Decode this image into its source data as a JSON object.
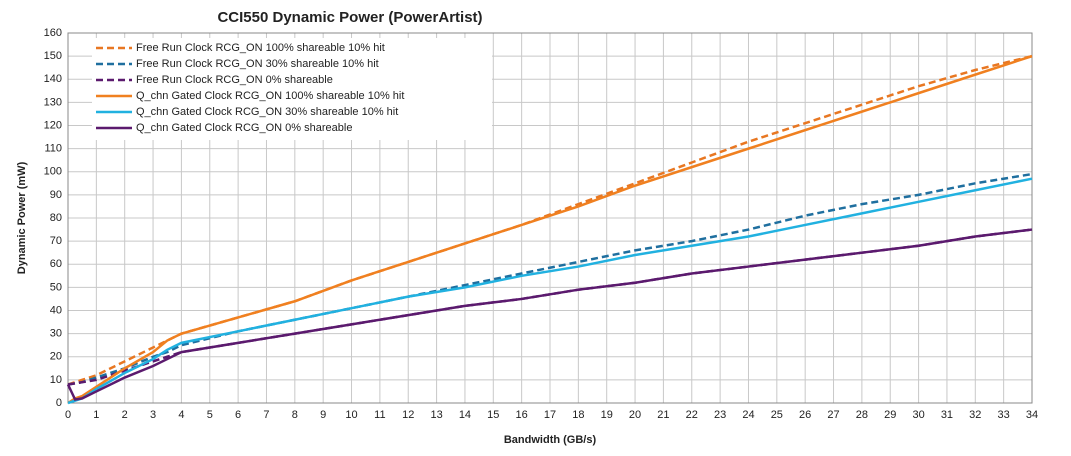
{
  "chart_data": {
    "type": "line",
    "title": "CCI550 Dynamic Power (PowerArtist)",
    "x_label": "Bandwidth (GB/s)",
    "y_label": "Dynamic Power (mW)",
    "x": [
      0,
      0.25,
      0.5,
      1,
      2,
      3,
      3.5,
      4,
      6,
      8,
      10,
      12,
      14,
      16,
      18,
      20,
      22,
      24,
      26,
      28,
      30,
      32,
      34
    ],
    "series": [
      {
        "name": "Free Run Clock RCG_ON 100% shareable 10% hit",
        "color": "#e87722",
        "dash": true,
        "values": [
          8,
          9,
          10,
          12,
          18,
          24,
          27,
          30,
          37,
          44,
          53,
          61,
          69,
          77,
          86,
          95,
          104,
          113,
          121,
          129,
          137,
          144,
          150
        ]
      },
      {
        "name": "Free Run Clock RCG_ON 30% shareable 10% hit",
        "color": "#1f6f9f",
        "dash": true,
        "values": [
          8,
          8.5,
          9,
          11,
          15,
          20,
          22,
          25,
          31,
          36,
          41,
          46,
          51,
          56,
          61,
          66,
          70,
          75,
          81,
          86,
          90,
          95,
          99
        ]
      },
      {
        "name": "Free Run Clock RCG_ON 0% shareable",
        "color": "#5b1a6e",
        "dash": true,
        "values": [
          8,
          8.5,
          9,
          10,
          14,
          18,
          20,
          22,
          26,
          30,
          34,
          38,
          42,
          45,
          49,
          52,
          56,
          59,
          62,
          65,
          68,
          72,
          75
        ]
      },
      {
        "name": "Q_chn Gated Clock RCG_ON 100% shareable 10% hit",
        "color": "#f08020",
        "dash": false,
        "values": [
          0,
          2,
          3,
          7,
          15,
          22,
          27,
          30,
          37,
          44,
          53,
          61,
          69,
          77,
          85,
          94,
          102,
          110,
          118,
          126,
          134,
          142,
          150
        ]
      },
      {
        "name": "Q_chn Gated Clock RCG_ON 30% shareable 10% hit",
        "color": "#21b1e0",
        "dash": false,
        "values": [
          0,
          1,
          2,
          6,
          13,
          19,
          23,
          26,
          31,
          36,
          41,
          46,
          50,
          55,
          59,
          64,
          68,
          72,
          77,
          82,
          87,
          92,
          97
        ]
      },
      {
        "name": "Q_chn Gated Clock RCG_ON 0% shareable",
        "color": "#5b1a6e",
        "dash": false,
        "values": [
          8,
          1.5,
          2,
          5,
          11,
          16,
          19,
          22,
          26,
          30,
          34,
          38,
          42,
          45,
          49,
          52,
          56,
          59,
          62,
          65,
          68,
          72,
          75
        ]
      }
    ],
    "xlim": [
      0,
      34
    ],
    "xticks": [
      0,
      1,
      2,
      3,
      4,
      5,
      6,
      7,
      8,
      9,
      10,
      11,
      12,
      13,
      14,
      15,
      16,
      17,
      18,
      19,
      20,
      21,
      22,
      23,
      24,
      25,
      26,
      27,
      28,
      29,
      30,
      31,
      32,
      33,
      34
    ],
    "ylim": [
      0,
      160
    ],
    "yticks": [
      0,
      10,
      20,
      30,
      40,
      50,
      60,
      70,
      80,
      90,
      100,
      110,
      120,
      130,
      140,
      150,
      160
    ],
    "grid": true,
    "legend": "upper left"
  }
}
